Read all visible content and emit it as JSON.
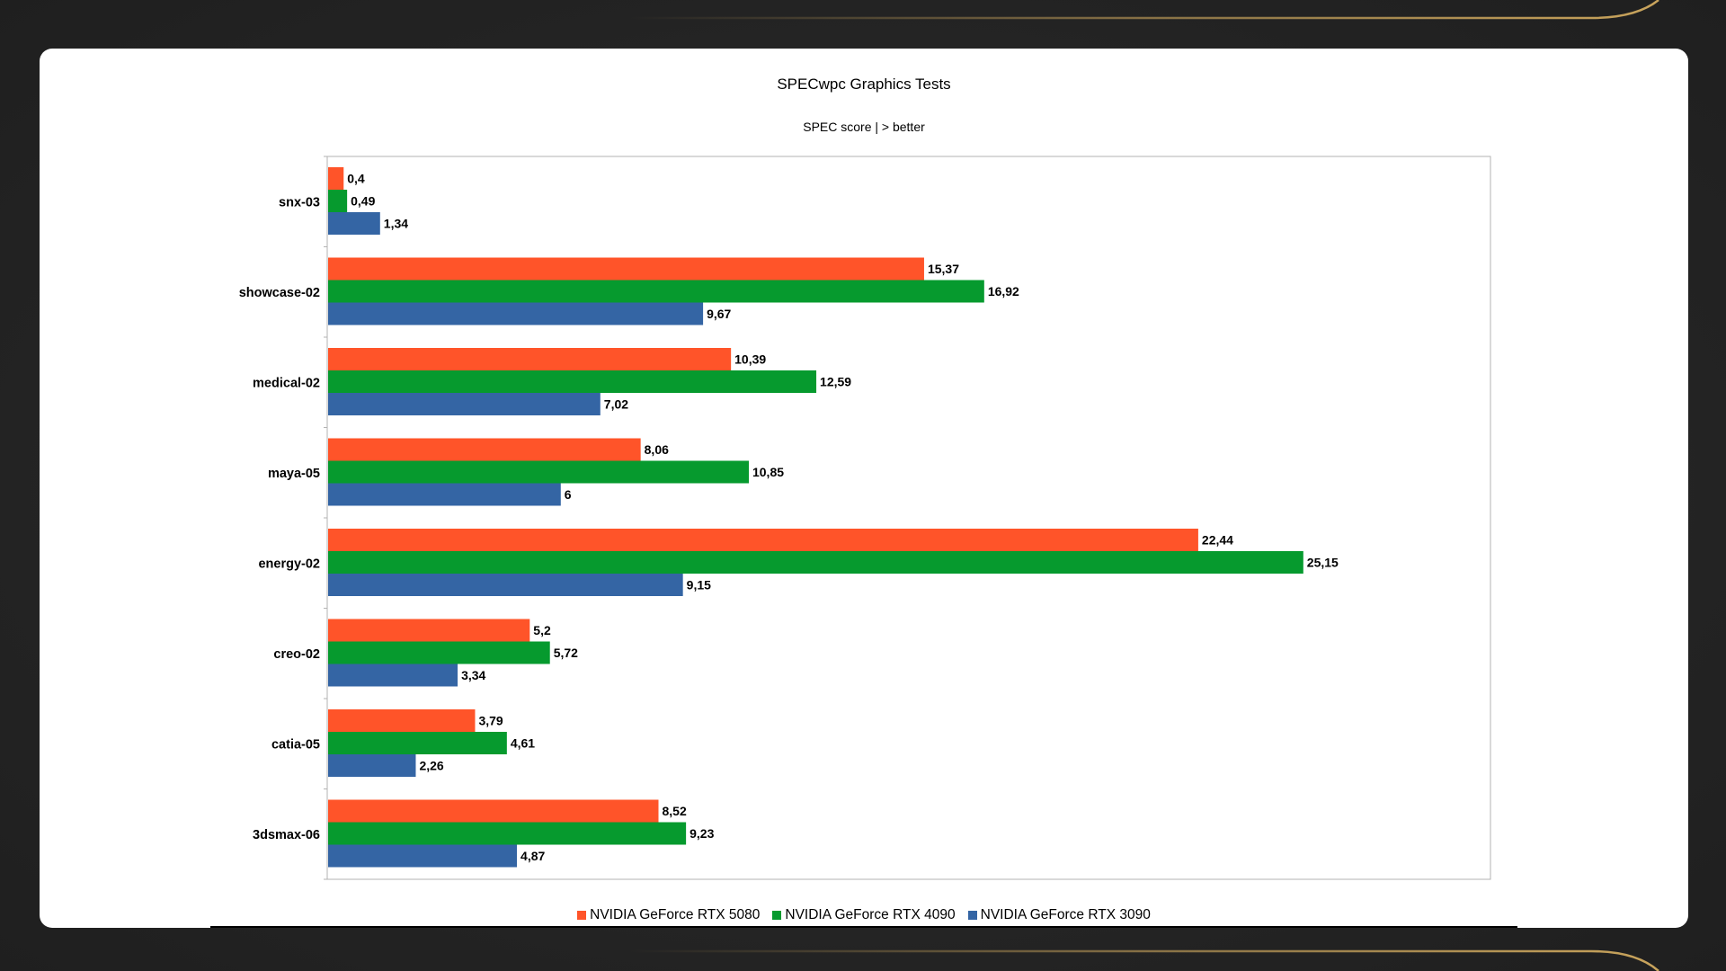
{
  "chart_data": {
    "type": "bar",
    "orientation": "horizontal",
    "title": "SPECwpc Graphics Tests",
    "subtitle": "SPEC score | > better",
    "categories": [
      "snx-03",
      "showcase-02",
      "medical-02",
      "maya-05",
      "energy-02",
      "creo-02",
      "catia-05",
      "3dsmax-06"
    ],
    "series": [
      {
        "name": "NVIDIA GeForce RTX 5080",
        "color": "#ff5429",
        "values": [
          0.4,
          15.37,
          10.39,
          8.06,
          22.44,
          5.2,
          3.79,
          8.52
        ],
        "labels": [
          "0,4",
          "15,37",
          "10,39",
          "8,06",
          "22,44",
          "5,2",
          "3,79",
          "8,52"
        ]
      },
      {
        "name": "NVIDIA GeForce RTX 4090",
        "color": "#069a2e",
        "values": [
          0.49,
          16.92,
          12.59,
          10.85,
          25.15,
          5.72,
          4.61,
          9.23
        ],
        "labels": [
          "0,49",
          "16,92",
          "12,59",
          "10,85",
          "25,15",
          "5,72",
          "4,61",
          "9,23"
        ]
      },
      {
        "name": "NVIDIA GeForce RTX 3090",
        "color": "#3465a4",
        "values": [
          1.34,
          9.67,
          7.02,
          6,
          9.15,
          3.34,
          2.26,
          4.87
        ],
        "labels": [
          "1,34",
          "9,67",
          "7,02",
          "6",
          "9,15",
          "3,34",
          "2,26",
          "4,87"
        ]
      }
    ],
    "xlim": [
      0,
      30
    ],
    "grid": false,
    "legend_position": "bottom"
  }
}
